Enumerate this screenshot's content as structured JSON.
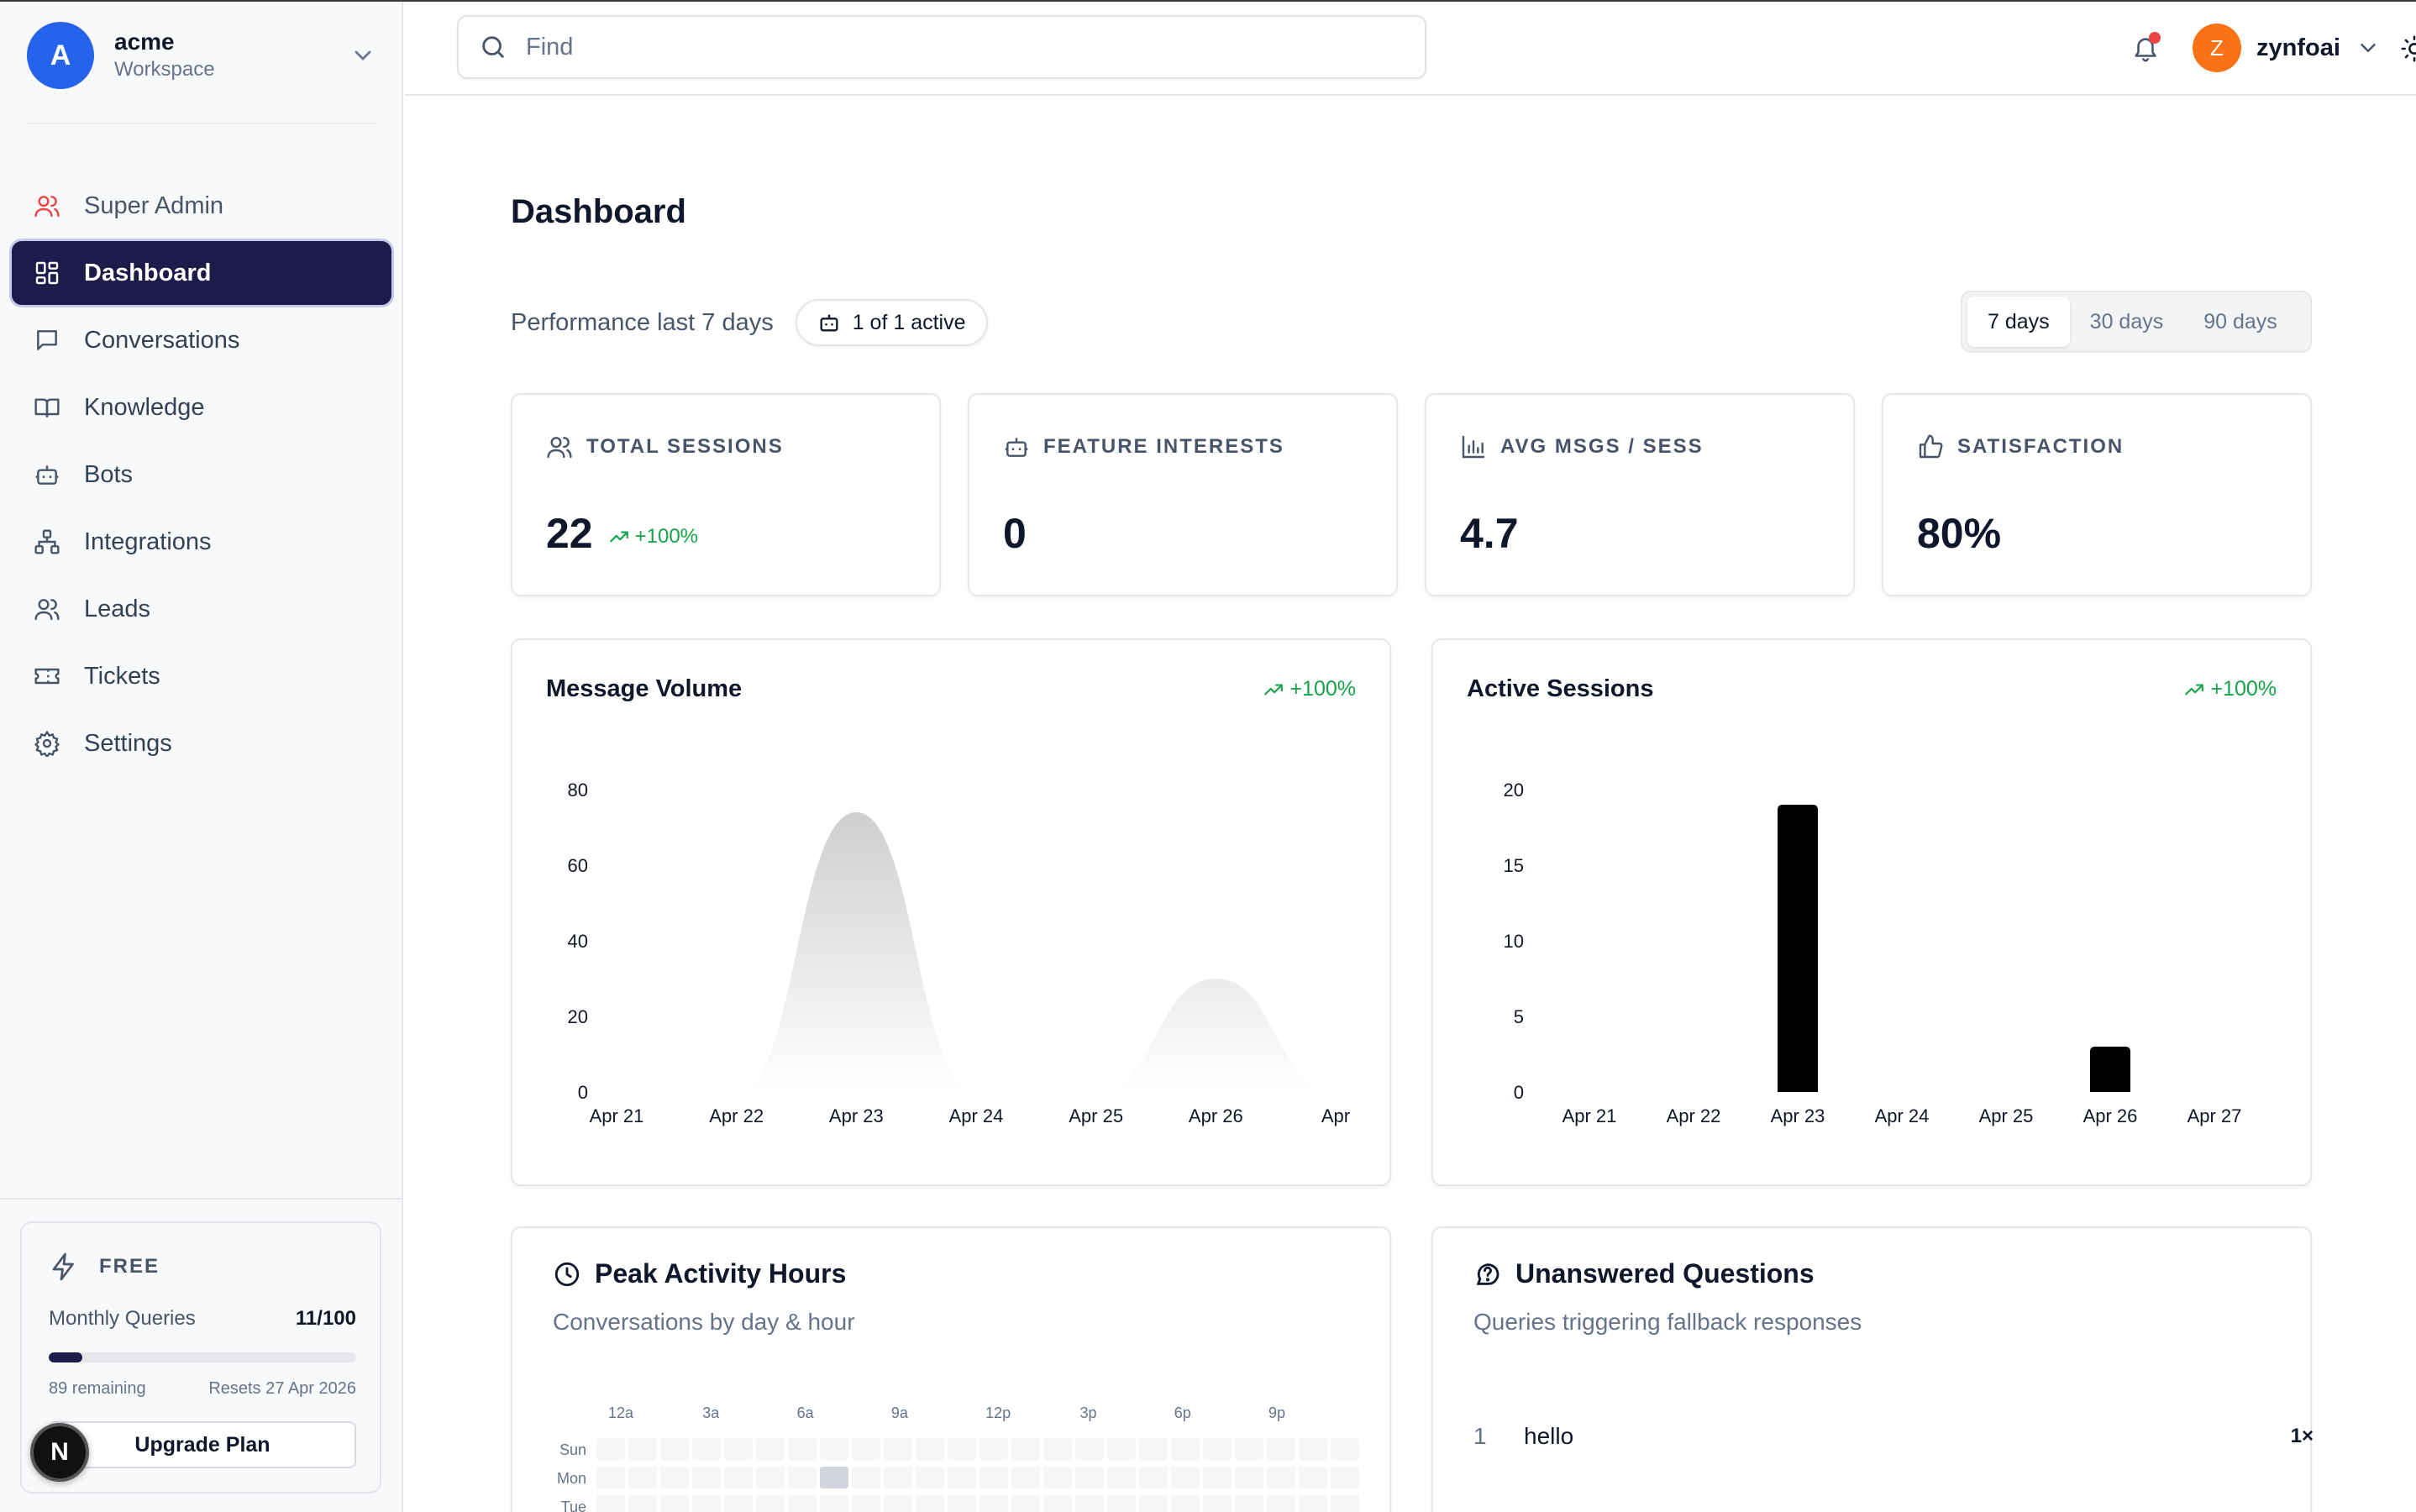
{
  "workspace": {
    "initial": "A",
    "name": "acme",
    "subtitle": "Workspace"
  },
  "sidebar": {
    "items": [
      {
        "label": "Super Admin",
        "icon": "users-icon"
      },
      {
        "label": "Dashboard",
        "icon": "grid-icon"
      },
      {
        "label": "Conversations",
        "icon": "message-icon"
      },
      {
        "label": "Knowledge",
        "icon": "book-icon"
      },
      {
        "label": "Bots",
        "icon": "bot-icon"
      },
      {
        "label": "Integrations",
        "icon": "network-icon"
      },
      {
        "label": "Leads",
        "icon": "users-icon"
      },
      {
        "label": "Tickets",
        "icon": "ticket-icon"
      },
      {
        "label": "Settings",
        "icon": "gear-icon"
      }
    ],
    "active_index": 1
  },
  "plan": {
    "tier": "FREE",
    "queries_label": "Monthly Queries",
    "queries_value": "11/100",
    "usage_fraction": 0.11,
    "remaining": "89 remaining",
    "resets": "Resets 27 Apr 2026",
    "upgrade_label": "Upgrade Plan"
  },
  "corner_badge": "N",
  "topbar": {
    "search_placeholder": "Find",
    "user_initial": "Z",
    "user_name": "zynfoai",
    "has_notification": true
  },
  "page": {
    "title": "Dashboard",
    "performance_label": "Performance last 7 days",
    "active_badge": "1 of 1 active",
    "ranges": [
      "7 days",
      "30 days",
      "90 days"
    ],
    "selected_range": 0
  },
  "stats": [
    {
      "label": "TOTAL SESSIONS",
      "icon": "users-icon",
      "value": "22",
      "delta": "+100%"
    },
    {
      "label": "FEATURE INTERESTS",
      "icon": "bot-icon",
      "value": "0",
      "delta": ""
    },
    {
      "label": "AVG MSGS / SESS",
      "icon": "bar-chart-icon",
      "value": "4.7",
      "delta": ""
    },
    {
      "label": "SATISFACTION",
      "icon": "thumbs-up-icon",
      "value": "80%",
      "delta": ""
    }
  ],
  "colors": {
    "accent": "#1e1b4b",
    "positive": "#16a34a",
    "workspace": "#2563eb",
    "user": "#f97316",
    "alert": "#ef4444"
  },
  "chart_data": [
    {
      "type": "area",
      "title": "Message Volume",
      "delta": "+100%",
      "categories": [
        "Apr 21",
        "Apr 22",
        "Apr 23",
        "Apr 24",
        "Apr 25",
        "Apr 26",
        "Apr"
      ],
      "values": [
        0,
        0,
        74,
        0,
        0,
        30,
        0
      ],
      "yticks": [
        0,
        20,
        40,
        60,
        80
      ],
      "ylim": [
        0,
        80
      ],
      "grid": false
    },
    {
      "type": "bar",
      "title": "Active Sessions",
      "delta": "+100%",
      "categories": [
        "Apr 21",
        "Apr 22",
        "Apr 23",
        "Apr 24",
        "Apr 25",
        "Apr 26",
        "Apr 27"
      ],
      "values": [
        0,
        0,
        19,
        0,
        0,
        3,
        0
      ],
      "yticks": [
        0,
        5,
        10,
        15,
        20
      ],
      "ylim": [
        0,
        20
      ],
      "grid": false
    }
  ],
  "peak": {
    "title": "Peak Activity Hours",
    "subtitle": "Conversations by day & hour",
    "hours": [
      "12a",
      "3a",
      "6a",
      "9a",
      "12p",
      "3p",
      "6p",
      "9p"
    ],
    "days": [
      "Sun",
      "Mon",
      "Tue"
    ],
    "highlight": {
      "day": "Mon",
      "hour": 7
    }
  },
  "unanswered": {
    "title": "Unanswered Questions",
    "subtitle": "Queries triggering fallback responses",
    "items": [
      {
        "index": "1",
        "text": "hello",
        "count": "1×"
      }
    ]
  }
}
